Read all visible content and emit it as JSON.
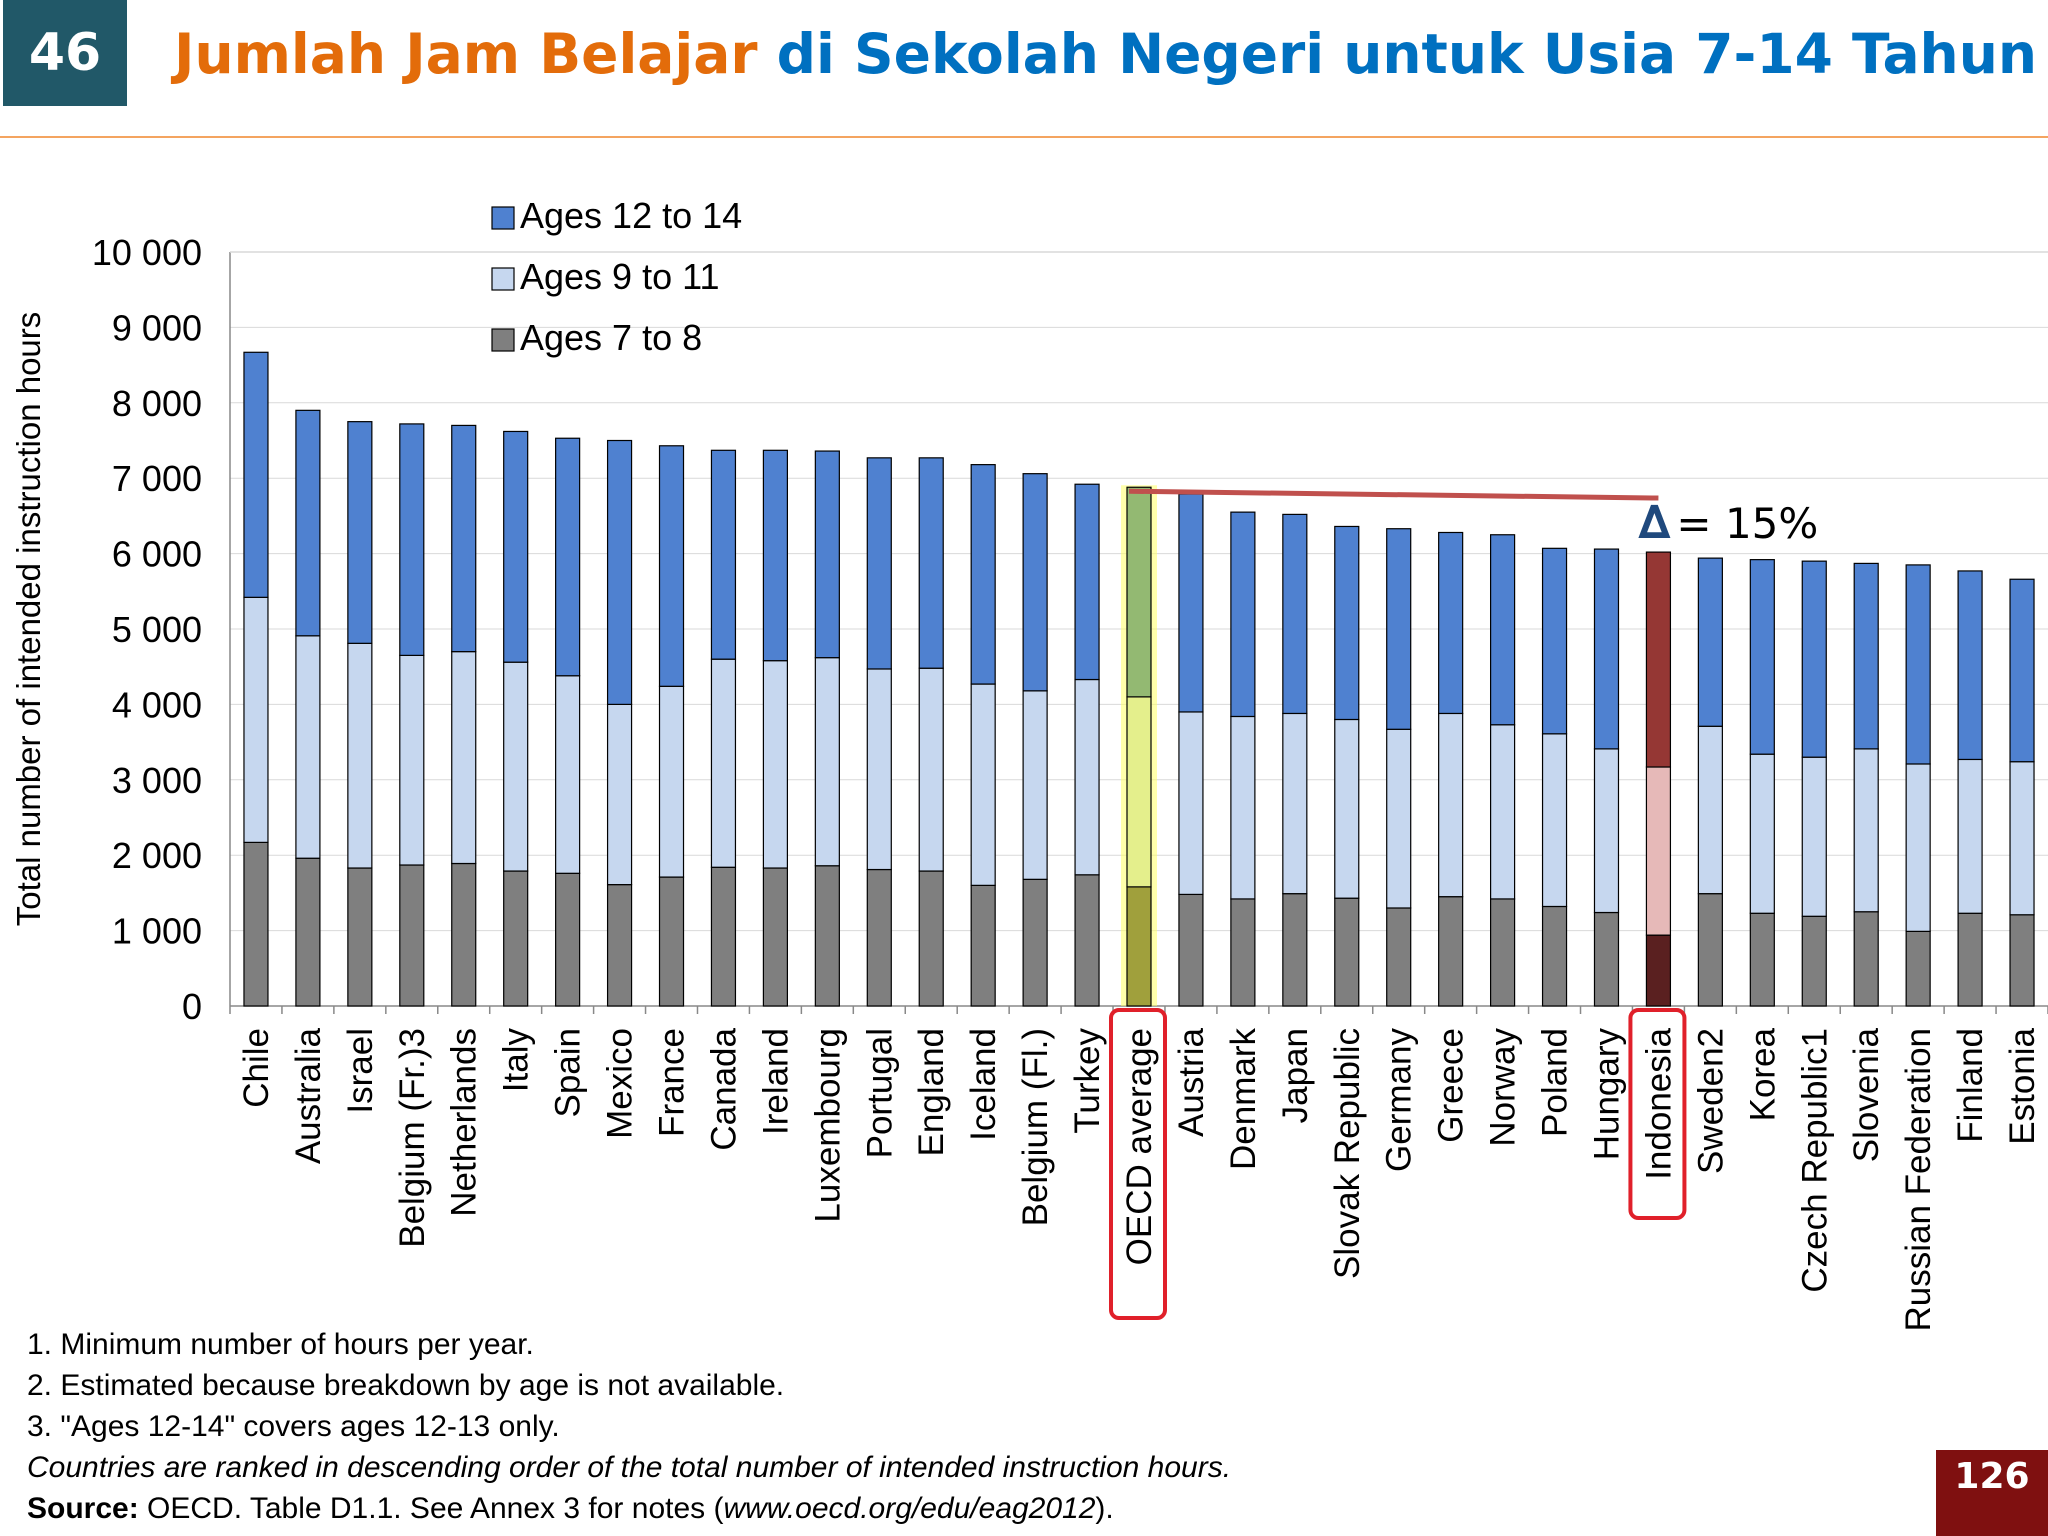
{
  "slide": {
    "number": "46",
    "title_part1": "Jumlah Jam Belajar",
    "title_part2": " di Sekolah Negeri untuk Usia 7-14 Tahun",
    "page_badge": "126"
  },
  "colors": {
    "ages_12_14": "#4f81d0",
    "ages_9_11": "#c6d7ef",
    "ages_7_8": "#7f7f7f",
    "oecd_12_14": "#93b972",
    "oecd_9_11": "#e4ef8c",
    "oecd_7_8": "#a0a03c",
    "indo_12_14": "#953734",
    "indo_9_11": "#e6b9b8",
    "indo_7_8": "#5a2020",
    "highlight_box": "#e0202a",
    "trend_line": "#c0504d",
    "delta": "#1f497d"
  },
  "chart_data": {
    "type": "bar",
    "stacked": true,
    "ylabel": "Total number of intended instruction hours",
    "ylim": [
      0,
      10000
    ],
    "yticks": [
      0,
      1000,
      2000,
      3000,
      4000,
      5000,
      6000,
      7000,
      8000,
      9000,
      10000
    ],
    "ytick_labels": [
      "0",
      "1 000",
      "2 000",
      "3 000",
      "4 000",
      "5 000",
      "6 000",
      "7 000",
      "8 000",
      "9 000",
      "10 000"
    ],
    "categories": [
      "Chile",
      "Australia",
      "Israel",
      "Belgium (Fr.)3",
      "Netherlands",
      "Italy",
      "Spain",
      "Mexico",
      "France",
      "Canada",
      "Ireland",
      "Luxembourg",
      "Portugal",
      "England",
      "Iceland",
      "Belgium (Fl.)",
      "Turkey",
      "OECD average",
      "Austria",
      "Denmark",
      "Japan",
      "Slovak Republic",
      "Germany",
      "Greece",
      "Norway",
      "Poland",
      "Hungary",
      "Indonesia",
      "Sweden2",
      "Korea",
      "Czech Republic1",
      "Slovenia",
      "Russian Federation",
      "Finland",
      "Estonia"
    ],
    "series": [
      {
        "name": "Ages 7 to 8",
        "values": [
          2170,
          1960,
          1830,
          1870,
          1890,
          1790,
          1760,
          1610,
          1710,
          1840,
          1830,
          1860,
          1810,
          1790,
          1600,
          1680,
          1740,
          1580,
          1480,
          1420,
          1490,
          1430,
          1300,
          1450,
          1420,
          1320,
          1240,
          940,
          1490,
          1230,
          1190,
          1250,
          990,
          1230,
          1210
        ]
      },
      {
        "name": "Ages 9 to 11",
        "values": [
          3250,
          2950,
          2980,
          2780,
          2810,
          2770,
          2620,
          2390,
          2530,
          2760,
          2750,
          2760,
          2660,
          2690,
          2670,
          2500,
          2590,
          2520,
          2420,
          2420,
          2390,
          2370,
          2370,
          2430,
          2310,
          2290,
          2170,
          2230,
          2220,
          2110,
          2110,
          2160,
          2220,
          2040,
          2030
        ]
      },
      {
        "name": "Ages 12 to 14",
        "values": [
          3250,
          2990,
          2940,
          3070,
          3000,
          3060,
          3150,
          3500,
          3190,
          2770,
          2790,
          2740,
          2800,
          2790,
          2910,
          2880,
          2590,
          2780,
          2890,
          2710,
          2640,
          2560,
          2660,
          2400,
          2520,
          2460,
          2650,
          2850,
          2230,
          2580,
          2600,
          2460,
          2640,
          2500,
          2420
        ]
      }
    ],
    "legend": [
      "Ages 12 to 14",
      "Ages 9 to 11",
      "Ages 7 to 8"
    ],
    "legend_position": "top-left",
    "highlighted_categories": [
      "OECD average",
      "Indonesia"
    ],
    "annotation": {
      "symbol": "∆",
      "text": "= 15%"
    }
  },
  "notes": {
    "n1": "1. Minimum number of hours per year.",
    "n2": "2. Estimated because breakdown by age is not available.",
    "n3": "3. \"Ages 12-14\" covers ages 12-13 only.",
    "ranking": "Countries are ranked in descending order of the total number of intended instruction hours.",
    "source_label": "Source:",
    "source_text": " OECD. Table D1.1. See Annex 3 for notes (",
    "source_url": "www.oecd.org/edu/eag2012",
    "source_end": ")."
  }
}
